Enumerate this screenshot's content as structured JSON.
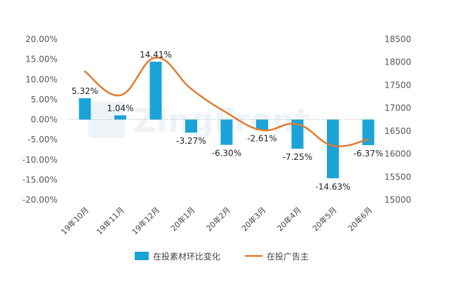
{
  "chart_data": {
    "type": "bar+line",
    "categories": [
      "19年10月",
      "19年11月",
      "19年12月",
      "20年1月",
      "20年2月",
      "20年3月",
      "20年4月",
      "20年5月",
      "20年6月"
    ],
    "series": [
      {
        "name": "在投素材环比变化",
        "type": "bar",
        "axis": "left",
        "values": [
          5.32,
          1.04,
          14.41,
          -3.27,
          -6.3,
          -2.61,
          -7.25,
          -14.63,
          -6.37
        ],
        "labels": [
          "5.32%",
          "1.04%",
          "14.41%",
          "-3.27%",
          "-6.30%",
          "-2.61%",
          "-7.25%",
          "-14.63%",
          "-6.37%"
        ],
        "color": "#1ba3d8"
      },
      {
        "name": "在投广告主",
        "type": "line",
        "axis": "right",
        "values": [
          17800,
          17280,
          18100,
          17420,
          16900,
          16520,
          16650,
          16180,
          16320
        ],
        "color": "#e07b2e"
      }
    ],
    "y_left": {
      "min": -20,
      "max": 20,
      "ticks": [
        "-20.00%",
        "-15.00%",
        "-10.00%",
        "-5.00%",
        "0.00%",
        "5.00%",
        "10.00%",
        "15.00%",
        "20.00%"
      ]
    },
    "y_right": {
      "min": 15000,
      "max": 18500,
      "ticks": [
        "15000",
        "15500",
        "16000",
        "16500",
        "17000",
        "17500",
        "18000",
        "18500"
      ]
    },
    "legend_position": "bottom",
    "grid": false,
    "watermark": "ZingFront"
  }
}
